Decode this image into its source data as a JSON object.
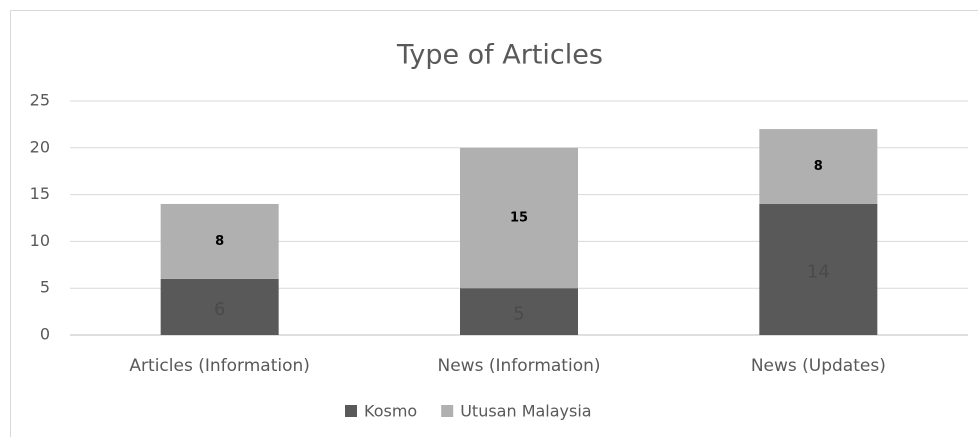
{
  "chart_data": {
    "type": "stacked_bar",
    "title": "Type of Articles",
    "categories": [
      "Articles (Information)",
      "News (Information)",
      "News (Updates)"
    ],
    "series": [
      {
        "name": "Kosmo",
        "color": "#595959",
        "values": [
          6,
          5,
          14
        ]
      },
      {
        "name": "Utusan Malaysia",
        "color": "#b0b0b0",
        "values": [
          8,
          15,
          8
        ]
      }
    ],
    "ylim": [
      0,
      25
    ],
    "yticks": [
      0,
      5,
      10,
      15,
      20,
      25
    ],
    "grid": true,
    "legend": "bottom"
  }
}
